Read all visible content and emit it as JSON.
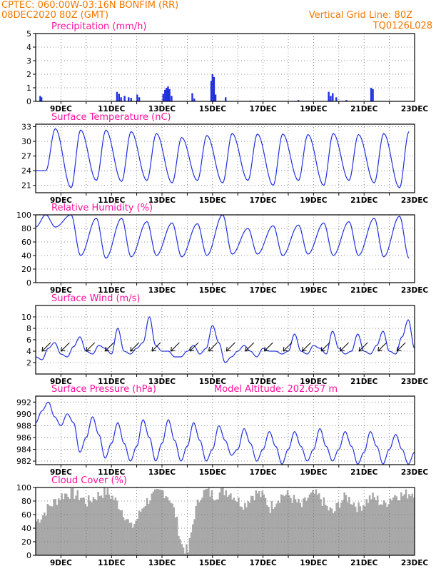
{
  "header": {
    "left_line1": "CPTEC:  060:00W-03:16N  BONFIM (RR)",
    "left_line2": "08DEC2020 80Z (GMT)",
    "right_line1": "Vertical Grid Line: 80Z",
    "right_line2": "TQ0126L028"
  },
  "colors": {
    "line": "#2030e0",
    "cloud": "#a8a8a8",
    "title": "#ff10a0",
    "header": "#f07800",
    "arrow": "#000000"
  },
  "x_ticks": [
    "9DEC",
    "11DEC",
    "13DEC",
    "15DEC",
    "17DEC",
    "19DEC",
    "21DEC",
    "23DEC"
  ],
  "chart_data": [
    {
      "type": "bar",
      "title": "Precipitation (mm/h)",
      "ylim": [
        0,
        5
      ],
      "yticks": [
        0,
        1,
        2,
        3,
        4,
        5
      ],
      "x_unit": "days since 08DEC 00Z",
      "x": [
        0.18,
        0.23,
        3.22,
        3.3,
        3.38,
        3.52,
        3.68,
        3.78,
        4.02,
        4.1,
        5.05,
        5.12,
        5.18,
        5.24,
        5.3,
        5.38,
        6.2,
        6.28,
        6.95,
        7.0,
        7.06,
        7.12,
        7.52,
        8.5,
        10.4,
        11.6,
        11.68,
        11.76,
        11.9,
        12.3,
        13.28,
        13.35
      ],
      "values": [
        0.4,
        0.3,
        0.7,
        0.55,
        0.3,
        0.4,
        0.3,
        0.25,
        0.5,
        0.3,
        0.55,
        0.85,
        1.0,
        1.1,
        0.9,
        0.4,
        0.6,
        0.2,
        1.5,
        2.0,
        1.8,
        0.5,
        0.3,
        0.05,
        0.1,
        0.7,
        0.4,
        0.6,
        0.3,
        0.1,
        1.0,
        0.9
      ]
    },
    {
      "type": "line",
      "title": "Surface Temperature (nC)",
      "ylim": [
        19.5,
        33.5
      ],
      "yticks": [
        21,
        24,
        27,
        30,
        33
      ],
      "daily_max": [
        32.6,
        32.3,
        32.3,
        32.0,
        31.6,
        30.8,
        31.2,
        31.6,
        31.5,
        31.5,
        31.4,
        31.6,
        31.4,
        31.6,
        32.0,
        31.8
      ],
      "daily_min": [
        24.0,
        20.5,
        22.0,
        21.8,
        22.0,
        21.5,
        22.0,
        21.5,
        22.0,
        21.0,
        22.0,
        21.0,
        22.0,
        21.5,
        20.5,
        22.0
      ]
    },
    {
      "type": "line",
      "title": "Relative Humidity (%)",
      "ylim": [
        0,
        100
      ],
      "yticks": [
        0,
        20,
        40,
        60,
        80,
        100
      ],
      "daily_max": [
        100,
        100,
        95,
        95,
        90,
        88,
        87,
        100,
        80,
        84,
        85,
        88,
        90,
        95,
        98,
        96
      ],
      "daily_min": [
        82,
        40,
        36,
        38,
        40,
        38,
        40,
        42,
        42,
        40,
        42,
        40,
        40,
        38,
        36,
        38
      ]
    },
    {
      "type": "line",
      "title": "Surface Wind (m/s)",
      "ylim": [
        0,
        12
      ],
      "yticks": [
        2,
        4,
        6,
        8,
        10
      ],
      "x": [
        0.0,
        0.25,
        0.5,
        0.75,
        1.0,
        1.25,
        1.5,
        1.75,
        2.0,
        2.25,
        2.5,
        2.75,
        3.0,
        3.25,
        3.5,
        3.75,
        4.0,
        4.25,
        4.5,
        4.75,
        5.0,
        5.25,
        5.5,
        5.75,
        6.0,
        6.25,
        6.5,
        6.75,
        7.0,
        7.25,
        7.5,
        7.75,
        8.0,
        8.25,
        8.5,
        8.75,
        9.0,
        9.25,
        9.5,
        9.75,
        10.0,
        10.25,
        10.5,
        10.75,
        11.0,
        11.25,
        11.5,
        11.75,
        12.0,
        12.25,
        12.5,
        12.75,
        13.0,
        13.25,
        13.5,
        13.75,
        14.0,
        14.25,
        14.5,
        14.75,
        15.0
      ],
      "values": [
        3.0,
        2.5,
        4.5,
        5.5,
        3.5,
        3.0,
        4.8,
        6.5,
        4.0,
        3.5,
        5.0,
        4.5,
        3.5,
        8.0,
        4.0,
        3.5,
        4.5,
        5.5,
        10.0,
        5.0,
        4.0,
        4.0,
        3.0,
        3.0,
        4.0,
        5.0,
        3.5,
        4.5,
        8.5,
        5.5,
        2.0,
        3.0,
        4.0,
        5.0,
        4.0,
        3.0,
        4.5,
        4.0,
        4.0,
        3.5,
        4.0,
        7.0,
        4.0,
        3.5,
        5.0,
        4.5,
        3.5,
        7.5,
        4.5,
        3.5,
        4.0,
        7.0,
        4.0,
        3.5,
        5.0,
        7.5,
        4.0,
        3.5,
        6.5,
        9.5,
        4.5
      ],
      "arrow_times": [
        0.25,
        1.0,
        2.0,
        2.75,
        3.75,
        4.6,
        5.35,
        6.1,
        6.85,
        7.55,
        8.3,
        9.05,
        9.8,
        10.55,
        11.3,
        12.05,
        12.8,
        13.55,
        14.3
      ]
    },
    {
      "type": "line",
      "title": "Surface Pressure (hPa)",
      "annotation": "Model Altitude: 202.657 m",
      "ylim": [
        981.4,
        993
      ],
      "yticks": [
        982,
        984,
        986,
        988,
        990,
        992
      ],
      "x": [
        0.0,
        0.25,
        0.5,
        0.75,
        1.0,
        1.25,
        1.5,
        1.75,
        2.0,
        2.25,
        2.5,
        2.75,
        3.0,
        3.25,
        3.5,
        3.75,
        4.0,
        4.25,
        4.5,
        4.75,
        5.0,
        5.25,
        5.5,
        5.75,
        6.0,
        6.25,
        6.5,
        6.75,
        7.0,
        7.25,
        7.5,
        7.75,
        8.0,
        8.25,
        8.5,
        8.75,
        9.0,
        9.25,
        9.5,
        9.75,
        10.0,
        10.25,
        10.5,
        10.75,
        11.0,
        11.25,
        11.5,
        11.75,
        12.0,
        12.25,
        12.5,
        12.75,
        13.0,
        13.25,
        13.5,
        13.75,
        14.0,
        14.25,
        14.5,
        14.75,
        15.0
      ],
      "values": [
        988.5,
        990.5,
        992.0,
        989.5,
        988.0,
        990.0,
        988.5,
        983.5,
        986.0,
        989.5,
        986.5,
        982.5,
        985.0,
        988.5,
        985.0,
        982.0,
        984.5,
        989.0,
        986.0,
        982.0,
        985.0,
        989.0,
        985.5,
        982.0,
        984.5,
        988.5,
        985.5,
        982.0,
        984.0,
        988.0,
        985.5,
        983.0,
        984.0,
        987.5,
        985.0,
        982.0,
        984.0,
        987.0,
        984.5,
        981.5,
        984.0,
        987.0,
        984.5,
        982.0,
        984.0,
        987.5,
        984.5,
        982.0,
        984.0,
        987.0,
        984.5,
        981.5,
        983.5,
        987.0,
        984.5,
        981.5,
        984.0,
        986.5,
        984.0,
        981.5,
        983.5
      ]
    },
    {
      "type": "area",
      "title": "Cloud Cover (%)",
      "ylim": [
        0,
        100
      ],
      "yticks": [
        0,
        20,
        40,
        60,
        80,
        100
      ],
      "x": [
        0.0,
        0.25,
        0.5,
        0.75,
        1.0,
        1.25,
        1.5,
        1.75,
        2.0,
        2.25,
        2.5,
        2.75,
        3.0,
        3.25,
        3.5,
        3.75,
        4.0,
        4.25,
        4.5,
        4.75,
        5.0,
        5.25,
        5.5,
        5.75,
        6.0,
        6.25,
        6.5,
        6.75,
        7.0,
        7.25,
        7.5,
        7.75,
        8.0,
        8.25,
        8.5,
        8.75,
        9.0,
        9.25,
        9.5,
        9.75,
        10.0,
        10.25,
        10.5,
        10.75,
        11.0,
        11.25,
        11.5,
        11.75,
        12.0,
        12.25,
        12.5,
        12.75,
        13.0,
        13.25,
        13.5,
        13.75,
        14.0,
        14.25,
        14.5,
        14.75,
        15.0
      ],
      "values": [
        50,
        60,
        72,
        80,
        88,
        92,
        90,
        86,
        78,
        85,
        90,
        94,
        86,
        75,
        60,
        40,
        55,
        75,
        85,
        90,
        95,
        86,
        60,
        15,
        5,
        60,
        90,
        95,
        88,
        92,
        96,
        90,
        80,
        75,
        88,
        92,
        86,
        70,
        82,
        90,
        88,
        80,
        72,
        85,
        90,
        84,
        70,
        62,
        78,
        86,
        80,
        70,
        78,
        86,
        82,
        74,
        84,
        90,
        88,
        92,
        94
      ]
    }
  ]
}
